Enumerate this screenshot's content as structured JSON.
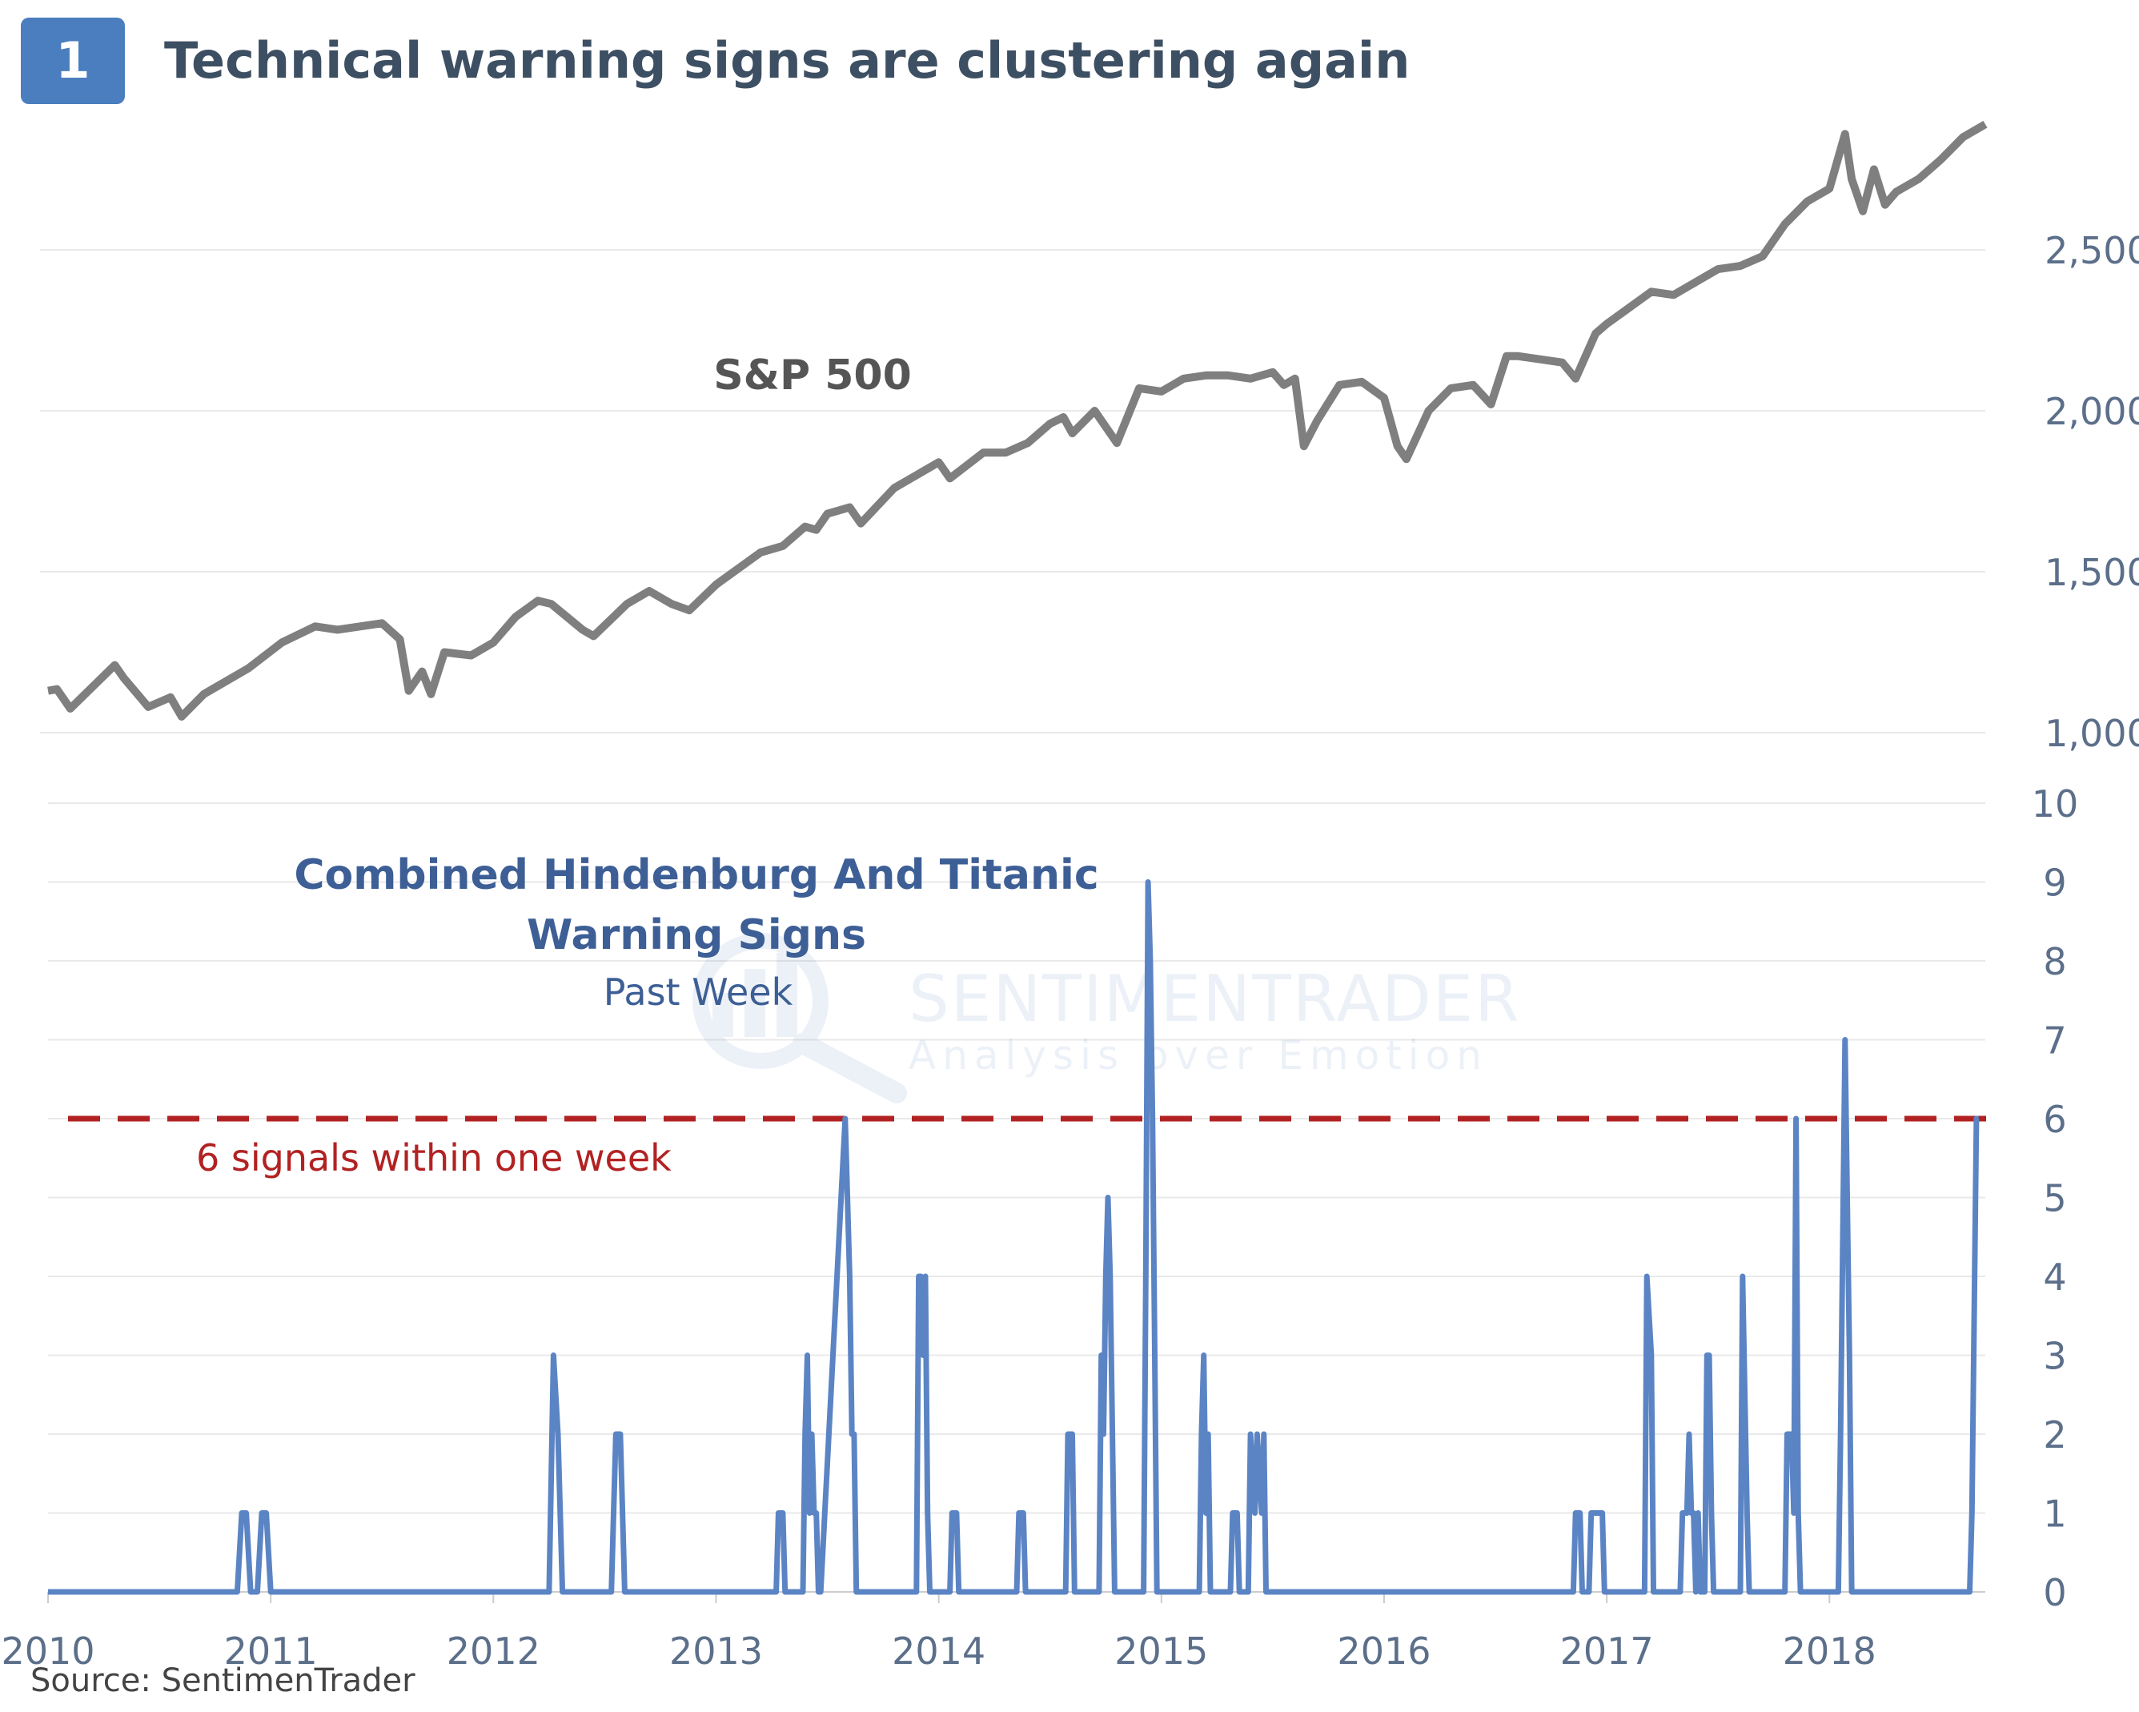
{
  "header": {
    "number": "1",
    "title": "Technical warning signs are clustering again"
  },
  "source": "Source: SentimenTrader",
  "watermark": {
    "brand": "SENTIMENTRADER",
    "tagline": "Analysis over Emotion"
  },
  "colors": {
    "sp500": "#7f7f7f",
    "signals": "#5b84c4",
    "threshold": "#b22222",
    "grid": "#e9e9e9",
    "badge": "#4a7ebf",
    "title": "#3d4f63"
  },
  "chart_data": [
    {
      "type": "line",
      "label": "S&P 500",
      "ylim": [
        1000,
        2900
      ],
      "yticks": [
        "1,000",
        "1,500",
        "2,000",
        "2,500"
      ],
      "ytick_values": [
        1000,
        1500,
        2000,
        2500
      ],
      "x_range": [
        2010.0,
        2018.7
      ],
      "series": [
        {
          "x": [
            2010.0,
            2010.04,
            2010.1,
            2010.3,
            2010.34,
            2010.45,
            2010.55,
            2010.6,
            2010.7,
            2010.9,
            2011.05,
            2011.2,
            2011.3,
            2011.5,
            2011.58,
            2011.62,
            2011.68,
            2011.72,
            2011.78,
            2011.9,
            2012.0,
            2012.1,
            2012.2,
            2012.26,
            2012.4,
            2012.45,
            2012.6,
            2012.7,
            2012.8,
            2012.88,
            2013.0,
            2013.2,
            2013.3,
            2013.4,
            2013.45,
            2013.5,
            2013.6,
            2013.65,
            2013.8,
            2013.9,
            2014.0,
            2014.05,
            2014.2,
            2014.3,
            2014.4,
            2014.5,
            2014.56,
            2014.6,
            2014.7,
            2014.8,
            2014.9,
            2015.0,
            2015.1,
            2015.2,
            2015.3,
            2015.4,
            2015.5,
            2015.55,
            2015.6,
            2015.64,
            2015.7,
            2015.8,
            2015.9,
            2016.0,
            2016.06,
            2016.1,
            2016.2,
            2016.3,
            2016.4,
            2016.48,
            2016.55,
            2016.6,
            2016.8,
            2016.86,
            2016.95,
            2017.0,
            2017.2,
            2017.3,
            2017.4,
            2017.5,
            2017.6,
            2017.7,
            2017.8,
            2017.9,
            2018.0,
            2018.07,
            2018.1,
            2018.15,
            2018.2,
            2018.25,
            2018.3,
            2018.4,
            2018.5,
            2018.6,
            2018.7
          ],
          "y": [
            1130,
            1135,
            1075,
            1210,
            1170,
            1080,
            1110,
            1050,
            1120,
            1200,
            1280,
            1330,
            1320,
            1340,
            1290,
            1130,
            1190,
            1120,
            1250,
            1240,
            1280,
            1360,
            1410,
            1400,
            1320,
            1300,
            1400,
            1440,
            1400,
            1380,
            1460,
            1560,
            1580,
            1640,
            1630,
            1680,
            1700,
            1650,
            1760,
            1800,
            1840,
            1790,
            1870,
            1870,
            1900,
            1960,
            1980,
            1930,
            2000,
            1900,
            2070,
            2060,
            2100,
            2110,
            2110,
            2100,
            2120,
            2080,
            2100,
            1890,
            1970,
            2080,
            2090,
            2040,
            1890,
            1850,
            2000,
            2070,
            2080,
            2020,
            2170,
            2170,
            2150,
            2100,
            2240,
            2270,
            2370,
            2360,
            2400,
            2440,
            2450,
            2480,
            2580,
            2650,
            2690,
            2860,
            2720,
            2620,
            2750,
            2640,
            2680,
            2720,
            2780,
            2850,
            2890
          ]
        }
      ]
    },
    {
      "type": "line",
      "title": "Combined Hindenburg And Titanic Warning Signs",
      "subtitle": "Past Week",
      "ylim": [
        0,
        10
      ],
      "yticks": [
        "0",
        "1",
        "2",
        "3",
        "4",
        "5",
        "6",
        "7",
        "8",
        "9",
        "10"
      ],
      "ytick_values": [
        0,
        1,
        2,
        3,
        4,
        5,
        6,
        7,
        8,
        9,
        10
      ],
      "xticks": [
        "2010",
        "2011",
        "2012",
        "2013",
        "2014",
        "2015",
        "2016",
        "2017",
        "2018"
      ],
      "xtick_values": [
        2010,
        2011,
        2012,
        2013,
        2014,
        2015,
        2016,
        2017,
        2018
      ],
      "x_range": [
        2010.0,
        2018.7
      ],
      "threshold": {
        "value": 6,
        "label": "6 signals within one week"
      },
      "series": [
        {
          "x": [
            2010.0,
            2010.85,
            2010.87,
            2010.89,
            2010.91,
            2010.94,
            2010.96,
            2010.98,
            2011.0,
            2012.25,
            2012.27,
            2012.29,
            2012.31,
            2012.53,
            2012.55,
            2012.57,
            2012.59,
            2013.27,
            2013.28,
            2013.3,
            2013.31,
            2013.39,
            2013.4,
            2013.41,
            2013.42,
            2013.43,
            2013.44,
            2013.45,
            2013.46,
            2013.47,
            2013.58,
            2013.59,
            2013.6,
            2013.61,
            2013.62,
            2013.63,
            2013.65,
            2013.9,
            2013.91,
            2013.92,
            2013.93,
            2013.94,
            2013.95,
            2013.96,
            2014.05,
            2014.06,
            2014.08,
            2014.09,
            2014.35,
            2014.36,
            2014.38,
            2014.39,
            2014.57,
            2014.58,
            2014.6,
            2014.61,
            2014.72,
            2014.73,
            2014.74,
            2014.75,
            2014.76,
            2014.77,
            2014.79,
            2014.92,
            2014.93,
            2014.94,
            2014.95,
            2014.96,
            2014.97,
            2014.98,
            2015.0,
            2015.17,
            2015.18,
            2015.19,
            2015.2,
            2015.21,
            2015.22,
            2015.31,
            2015.32,
            2015.34,
            2015.35,
            2015.39,
            2015.4,
            2015.42,
            2015.43,
            2015.45,
            2015.46,
            2015.47,
            2016.85,
            2016.86,
            2016.88,
            2016.89,
            2016.92,
            2016.93,
            2016.95,
            2016.96,
            2016.98,
            2016.99,
            2017.17,
            2017.18,
            2017.2,
            2017.21,
            2017.33,
            2017.34,
            2017.36,
            2017.37,
            2017.38,
            2017.39,
            2017.4,
            2017.41,
            2017.42,
            2017.44,
            2017.45,
            2017.46,
            2017.47,
            2017.48,
            2017.5,
            2017.6,
            2017.61,
            2017.63,
            2017.64,
            2017.8,
            2017.81,
            2017.83,
            2017.84,
            2017.85,
            2017.86,
            2017.87,
            2017.88,
            2018.04,
            2018.05,
            2018.07,
            2018.08,
            2018.09,
            2018.1,
            2018.12,
            2018.63,
            2018.64,
            2018.66,
            2018.67
          ],
          "y": [
            0,
            0,
            1,
            1,
            0,
            0,
            1,
            1,
            0,
            0,
            3,
            2,
            0,
            0,
            2,
            2,
            0,
            0,
            1,
            1,
            0,
            0,
            2,
            3,
            1,
            2,
            1,
            1,
            0,
            0,
            6,
            5,
            4,
            2,
            2,
            0,
            0,
            0,
            4,
            4,
            3,
            4,
            1,
            0,
            0,
            1,
            1,
            0,
            0,
            1,
            1,
            0,
            0,
            2,
            2,
            0,
            0,
            3,
            2,
            4,
            5,
            4,
            0,
            0,
            4,
            9,
            8,
            6,
            3,
            0,
            0,
            0,
            2,
            3,
            1,
            2,
            0,
            0,
            1,
            1,
            0,
            0,
            2,
            1,
            2,
            1,
            2,
            0,
            0,
            1,
            1,
            0,
            0,
            1,
            1,
            1,
            1,
            0,
            0,
            4,
            3,
            0,
            0,
            1,
            1,
            2,
            1,
            1,
            0,
            1,
            0,
            0,
            3,
            3,
            1,
            0,
            0,
            0,
            4,
            1,
            0,
            0,
            2,
            2,
            1,
            6,
            1,
            0,
            0,
            0,
            2,
            7,
            5,
            3,
            0,
            0,
            0,
            1,
            6,
            6
          ]
        }
      ]
    }
  ]
}
